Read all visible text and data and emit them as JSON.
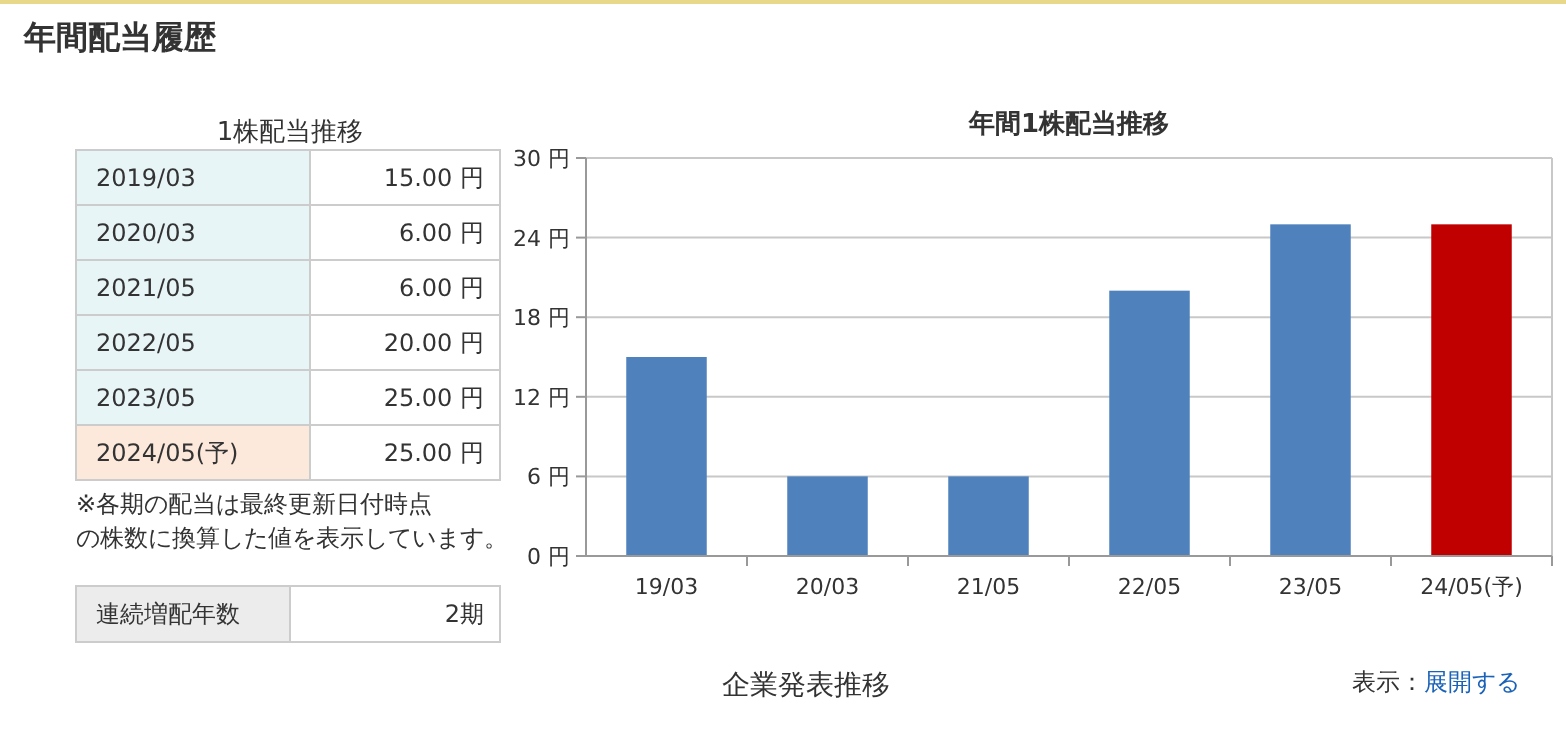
{
  "chart_data": [
    {
      "type": "other",
      "title": "1株配当推移",
      "annotations": [
        "年間配当履歴",
        "2019/03",
        "15.00 円",
        "2020/03",
        "6.00 円",
        "2021/05",
        "6.00 円",
        "2022/05",
        "20.00 円",
        "2023/05",
        "25.00 円",
        "2024/05(予)",
        "25.00 円",
        "※各期の配当は最終更新日付時点",
        "の株数に換算した値を表示しています。",
        "連続増配年数",
        "2期",
        "企業発表推移",
        "表示：",
        "展開する"
      ]
    },
    {
      "type": "bar",
      "title": "年間1株配当推移",
      "categories": [
        "19/03",
        "20/03",
        "21/05",
        "22/05",
        "23/05",
        "24/05(予)"
      ],
      "values": [
        15,
        6,
        6,
        20,
        25,
        25
      ],
      "colors": [
        "#4f81bd",
        "#4f81bd",
        "#4f81bd",
        "#4f81bd",
        "#4f81bd",
        "#c00000"
      ],
      "ylim": [
        0,
        30
      ],
      "yticks": [
        {
          "value": 0,
          "label": "0 円"
        },
        {
          "value": 6,
          "label": "6 円"
        },
        {
          "value": 12,
          "label": "12 円"
        },
        {
          "value": 18,
          "label": "18 円"
        },
        {
          "value": 24,
          "label": "24 円"
        },
        {
          "value": 30,
          "label": "30 円"
        }
      ],
      "grid": "y"
    }
  ]
}
